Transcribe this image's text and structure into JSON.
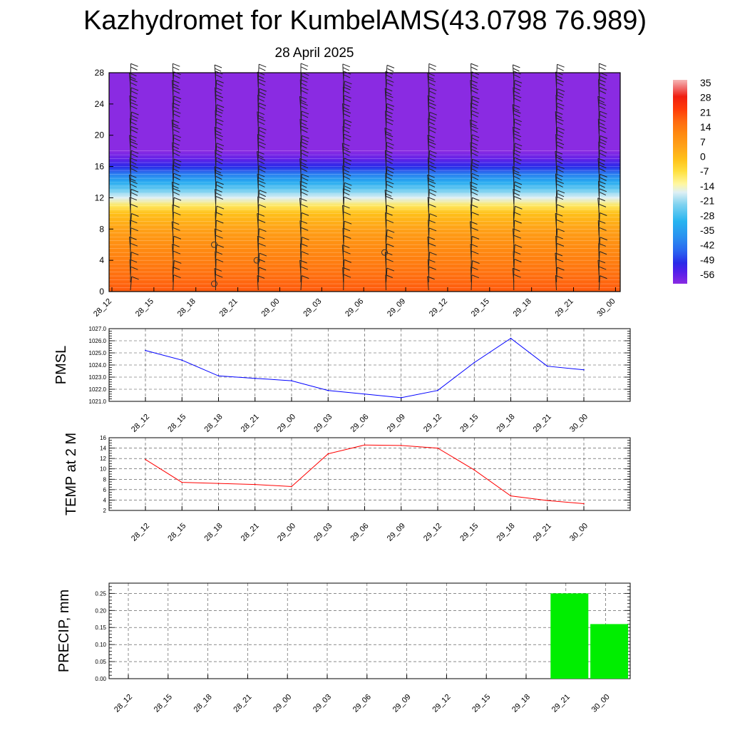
{
  "title": "Kazhydromet for KumbelAMS(43.0798 76.989)",
  "subtitle": "28 April 2025",
  "time_labels": [
    "28_12",
    "28_15",
    "28_18",
    "28_21",
    "29_00",
    "29_03",
    "29_06",
    "29_09",
    "29_12",
    "29_15",
    "29_18",
    "29_21",
    "30_00"
  ],
  "chart_data": [
    {
      "type": "heatmap",
      "x": [
        "28_12",
        "28_15",
        "28_18",
        "28_21",
        "29_00",
        "29_03",
        "29_06",
        "29_09",
        "29_12",
        "29_15",
        "29_18",
        "29_21",
        "30_00"
      ],
      "y_ticks": [
        0,
        4,
        8,
        12,
        16,
        20,
        24,
        28
      ],
      "ylim": [
        0,
        28
      ],
      "colorbar": {
        "labels": [
          "35",
          "28",
          "21",
          "14",
          "7",
          "0",
          "-7",
          "-14",
          "-21",
          "-28",
          "-35",
          "-42",
          "-49",
          "-56"
        ],
        "range": [
          -60,
          38
        ]
      },
      "temperature_profile": [
        {
          "y": 0,
          "value": 20
        },
        {
          "y": 2,
          "value": 17
        },
        {
          "y": 4,
          "value": 14
        },
        {
          "y": 6,
          "value": 11
        },
        {
          "y": 8,
          "value": 6
        },
        {
          "y": 10,
          "value": 0
        },
        {
          "y": 11,
          "value": -8
        },
        {
          "y": 12,
          "value": -16
        },
        {
          "y": 13,
          "value": -24
        },
        {
          "y": 14,
          "value": -32
        },
        {
          "y": 15,
          "value": -40
        },
        {
          "y": 16,
          "value": -50
        },
        {
          "y": 17,
          "value": -56
        },
        {
          "y": 18,
          "value": -60
        },
        {
          "y": 28,
          "value": -60
        }
      ],
      "grid": false
    },
    {
      "type": "line",
      "ylabel": "PMSL",
      "x": [
        "28_12",
        "28_15",
        "28_18",
        "28_21",
        "29_00",
        "29_03",
        "29_06",
        "29_09",
        "29_12",
        "29_15",
        "29_18",
        "29_21",
        "30_00"
      ],
      "values": [
        1025.2,
        1024.4,
        1023.1,
        1022.9,
        1022.7,
        1021.9,
        1021.6,
        1021.3,
        1021.9,
        1024.2,
        1026.2,
        1023.9,
        1023.6
      ],
      "ylim": [
        1021.0,
        1027.0
      ],
      "y_ticks": [
        "1021.0",
        "1022.0",
        "1023.0",
        "1024.0",
        "1025.0",
        "1026.0",
        "1027.0"
      ],
      "color": "#0000ff",
      "grid": true
    },
    {
      "type": "line",
      "ylabel": "TEMP at 2 M",
      "x": [
        "28_12",
        "28_15",
        "28_18",
        "28_21",
        "29_00",
        "29_03",
        "29_06",
        "29_09",
        "29_12",
        "29_15",
        "29_18",
        "29_21",
        "30_00"
      ],
      "values": [
        11.8,
        7.4,
        7.2,
        7.0,
        6.6,
        12.9,
        14.6,
        14.5,
        14.0,
        9.8,
        4.8,
        3.9,
        3.3
      ],
      "ylim": [
        2,
        16
      ],
      "y_ticks": [
        "2",
        "4",
        "6",
        "8",
        "10",
        "12",
        "14",
        "16"
      ],
      "color": "#ff0000",
      "grid": true
    },
    {
      "type": "bar",
      "ylabel": "PRECIP, mm",
      "categories": [
        "28_12",
        "28_15",
        "28_18",
        "28_21",
        "29_00",
        "29_03",
        "29_06",
        "29_09",
        "29_12",
        "29_15",
        "29_18",
        "29_21",
        "30_00"
      ],
      "values": [
        0,
        0,
        0,
        0,
        0,
        0,
        0,
        0,
        0,
        0,
        0,
        0.25,
        0.16
      ],
      "ylim": [
        0,
        0.28
      ],
      "y_ticks": [
        "0.00",
        "0.05",
        "0.10",
        "0.15",
        "0.20",
        "0.25"
      ],
      "color": "#00ee00",
      "grid": true
    }
  ]
}
